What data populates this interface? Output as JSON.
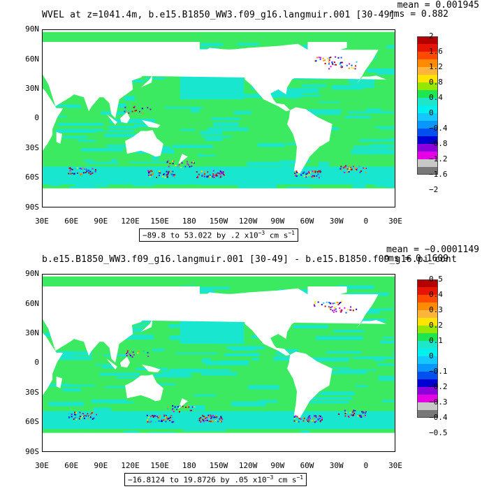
{
  "panels": [
    {
      "title": "WVEL at z=1041.4m, b.e15.B1850_WW3.f09_g16.langmuir.001 [30-49]",
      "mean": "mean = 0.001945",
      "rms": "rms = 0.882",
      "range_text": "−89.8 to 53.022 by .2 x10",
      "range_exp": "−3",
      "range_units": " cm s",
      "range_unit_exp": "−1",
      "colorbar_labels": [
        "2",
        "1.6",
        "1.2",
        "0.8",
        "0.4",
        "0",
        "−0.4",
        "−0.8",
        "−1.2",
        "−1.6",
        "−2"
      ]
    },
    {
      "title": "b.e15.B1850_WW3.f09_g16.langmuir.001 [30-49] - b.e15.B1850.f09_g16.pi_cont",
      "mean": "mean = −0.0001149",
      "rms": "rms = 0.1609",
      "range_text": "−16.8124 to 19.8726 by .05 x10",
      "range_exp": "−3",
      "range_units": " cm s",
      "range_unit_exp": "−1",
      "colorbar_labels": [
        "0.5",
        "0.4",
        "0.3",
        "0.2",
        "0.1",
        "0",
        "−0.1",
        "−0.2",
        "−0.3",
        "−0.4",
        "−0.5"
      ]
    }
  ],
  "axes": {
    "y_ticks": [
      "90N",
      "60N",
      "30N",
      "0",
      "30S",
      "60S",
      "90S"
    ],
    "x_ticks": [
      "30E",
      "60E",
      "90E",
      "120E",
      "150E",
      "180",
      "150W",
      "120W",
      "90W",
      "60W",
      "30W",
      "0",
      "30E"
    ]
  },
  "chart_data": [
    {
      "type": "heatmap",
      "title": "WVEL at z=1041.4m, b.e15.B1850_WW3.f09_g16.langmuir.001 [30-49]",
      "x_range_deg_east": [
        30,
        390
      ],
      "y_range_deg_north": [
        -90,
        90
      ],
      "color_levels": [
        -2,
        -1.6,
        -1.2,
        -0.8,
        -0.4,
        0,
        0.4,
        0.8,
        1.2,
        1.6,
        2
      ],
      "mean": 0.001945,
      "rms": 0.882,
      "min": -89.8,
      "max": 53.022
    },
    {
      "type": "heatmap",
      "title": "b.e15.B1850_WW3.f09_g16.langmuir.001 [30-49] - b.e15.B1850.f09_g16.pi_cont",
      "x_range_deg_east": [
        30,
        390
      ],
      "y_range_deg_north": [
        -90,
        90
      ],
      "color_levels": [
        -0.5,
        -0.4,
        -0.3,
        -0.2,
        -0.1,
        0,
        0.1,
        0.2,
        0.3,
        0.4,
        0.5
      ],
      "mean": -0.0001149,
      "rms": 0.1609,
      "min": -16.8124,
      "max": 19.8726
    }
  ],
  "colorbar_colors": [
    "#b40000",
    "#e61400",
    "#ff4a00",
    "#ff8c00",
    "#ffb43c",
    "#ffe400",
    "#95e600",
    "#1ee650",
    "#1ee6c8",
    "#00f0f0",
    "#14c8ff",
    "#0a96ff",
    "#0050f0",
    "#0000d2",
    "#8c00dc",
    "#e600e6",
    "#c8c8c8",
    "#787878"
  ],
  "palette": {
    "ocean_cyan": "#19e6cf",
    "ocean_green": "#3cea62",
    "land": "#ffffff"
  }
}
